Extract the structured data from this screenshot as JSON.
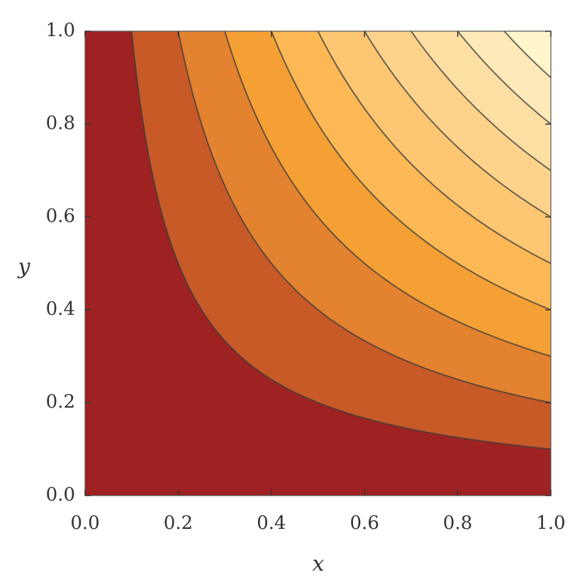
{
  "chart_data": {
    "type": "contour",
    "xlabel": "x",
    "ylabel": "y",
    "xlim": [
      0,
      1
    ],
    "ylim": [
      0,
      1
    ],
    "xticks": [
      {
        "value": 0,
        "label": "0.0"
      },
      0.2,
      0.4,
      0.6,
      0.8,
      {
        "value": 1,
        "label": "1.0"
      }
    ],
    "yticks": [
      {
        "value": 0,
        "label": "0.0"
      },
      0.2,
      0.4,
      0.6,
      0.8,
      {
        "value": 1,
        "label": "1.0"
      }
    ],
    "levels": [
      0.1,
      0.2,
      0.3,
      0.4,
      0.5,
      0.6,
      0.7,
      0.8,
      0.9
    ],
    "colors": [
      "#9e2222",
      "#c85a28",
      "#e3822f",
      "#f5a034",
      "#fbb855",
      "#fcc672",
      "#fdd38b",
      "#fedfa3",
      "#feeab8",
      "#fff5cb"
    ],
    "line_color": "#3c3c3c"
  }
}
